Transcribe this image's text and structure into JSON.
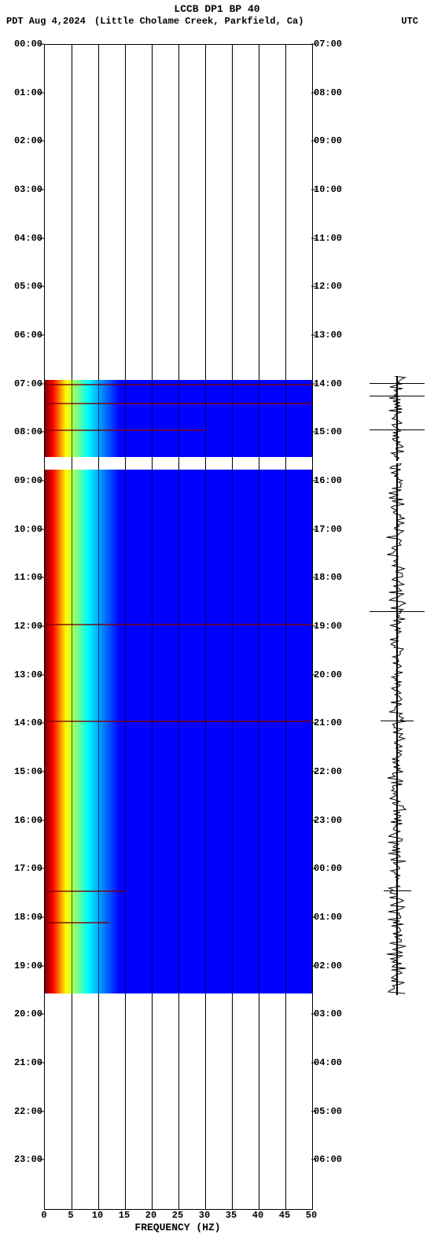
{
  "title": "LCCB DP1 BP 40",
  "subtitle_left": "PDT  Aug 4,2024",
  "subtitle_center": "(Little Cholame Creek, Parkfield, Ca)",
  "subtitle_right": "UTC",
  "xaxis_label": "FREQUENCY (HZ)",
  "plot": {
    "x_min": 0,
    "x_max": 50,
    "x_ticks": [
      0,
      5,
      10,
      15,
      20,
      25,
      30,
      35,
      40,
      45,
      50
    ],
    "left_tz": "PDT",
    "right_tz": "UTC",
    "left_hours": [
      "00:00",
      "01:00",
      "02:00",
      "03:00",
      "04:00",
      "05:00",
      "06:00",
      "07:00",
      "08:00",
      "09:00",
      "10:00",
      "11:00",
      "12:00",
      "13:00",
      "14:00",
      "15:00",
      "16:00",
      "17:00",
      "18:00",
      "19:00",
      "20:00",
      "21:00",
      "22:00",
      "23:00"
    ],
    "right_hours": [
      "07:00",
      "08:00",
      "09:00",
      "10:00",
      "11:00",
      "12:00",
      "13:00",
      "14:00",
      "15:00",
      "16:00",
      "17:00",
      "18:00",
      "19:00",
      "20:00",
      "21:00",
      "22:00",
      "23:00",
      "00:00",
      "01:00",
      "02:00",
      "03:00",
      "04:00",
      "05:00",
      "06:00"
    ],
    "hour_count": 24,
    "background_color": "#ffffff",
    "grid_color": "#000000",
    "title_fontsize": 13,
    "label_fontsize": 12,
    "spectrogram_colormap": {
      "low": "#0000ff",
      "mid": "#00ffff",
      "mid2": "#ffff00",
      "high": "#ff0000",
      "dark": "#800000"
    },
    "data_segments": [
      {
        "start_hour": 6.9,
        "end_hour": 8.5,
        "intensity": "high"
      },
      {
        "start_hour": 8.75,
        "end_hour": 19.55,
        "intensity": "high"
      }
    ],
    "notable_events": [
      {
        "hour": 7.0,
        "width_hz": 50,
        "desc": "broadband"
      },
      {
        "hour": 7.4,
        "width_hz": 50,
        "desc": "broadband"
      },
      {
        "hour": 7.95,
        "width_hz": 30,
        "desc": "streak"
      },
      {
        "hour": 11.95,
        "width_hz": 50,
        "desc": "broadband streak"
      },
      {
        "hour": 13.95,
        "width_hz": 50,
        "desc": "broadband streak"
      },
      {
        "hour": 17.45,
        "width_hz": 15,
        "desc": "strong burst"
      },
      {
        "hour": 18.1,
        "width_hz": 12,
        "desc": "burst"
      }
    ],
    "seismogram_segments": [
      {
        "start_hour": 6.85,
        "end_hour": 8.6,
        "amplitude": 0.35
      },
      {
        "start_hour": 8.65,
        "end_hour": 19.6,
        "amplitude": 0.4
      }
    ],
    "seismogram_spikes": [
      {
        "hour": 7.0,
        "amp": 1.0
      },
      {
        "hour": 7.25,
        "amp": 1.0
      },
      {
        "hour": 7.95,
        "amp": 1.0
      },
      {
        "hour": 11.7,
        "amp": 1.0
      },
      {
        "hour": 13.95,
        "amp": 0.6
      },
      {
        "hour": 17.45,
        "amp": 0.5
      }
    ],
    "seismogram_color": "#000000"
  }
}
